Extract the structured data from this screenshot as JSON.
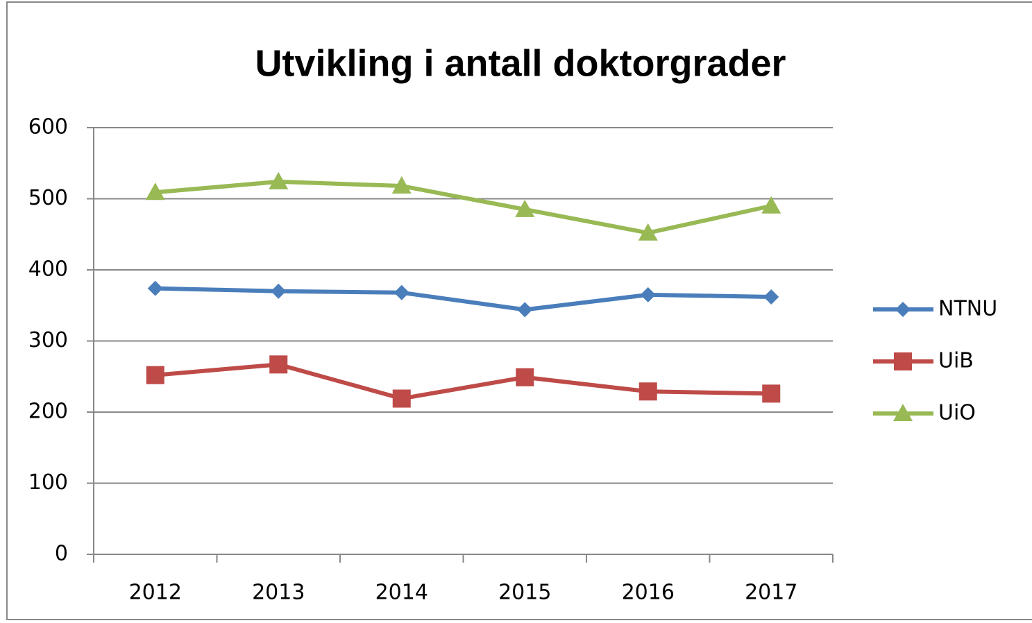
{
  "chart_data": {
    "type": "line",
    "title": "Utvikling i antall doktorgrader",
    "categories": [
      "2012",
      "2013",
      "2014",
      "2015",
      "2016",
      "2017"
    ],
    "series": [
      {
        "name": "NTNU",
        "color": "#4a7ebb",
        "marker": "diamond",
        "values": [
          374,
          370,
          368,
          344,
          365,
          362
        ]
      },
      {
        "name": "UiB",
        "color": "#be4b48",
        "marker": "square",
        "values": [
          252,
          267,
          219,
          249,
          229,
          226
        ]
      },
      {
        "name": "UiO",
        "color": "#98b954",
        "marker": "triangle",
        "values": [
          509,
          524,
          518,
          485,
          452,
          490
        ]
      }
    ],
    "ylim": [
      0,
      600
    ],
    "yticks": [
      0,
      100,
      200,
      300,
      400,
      500,
      600
    ],
    "grid": true,
    "legend": "right"
  }
}
